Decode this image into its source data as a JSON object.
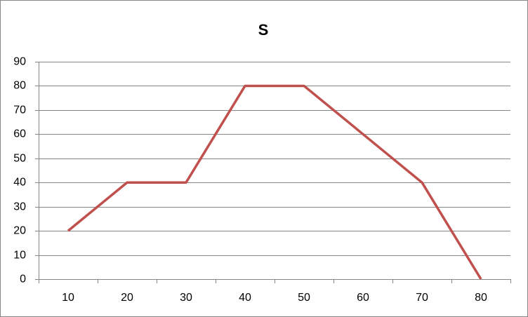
{
  "chart_data": {
    "type": "line",
    "title": "S",
    "categories": [
      "10",
      "20",
      "30",
      "40",
      "50",
      "60",
      "70",
      "80"
    ],
    "series": [
      {
        "name": "S",
        "color": "#c0504d",
        "values": [
          20,
          40,
          40,
          80,
          80,
          60,
          40,
          0
        ]
      }
    ],
    "ylim": [
      0,
      90
    ],
    "yticks": [
      0,
      10,
      20,
      30,
      40,
      50,
      60,
      70,
      80,
      90
    ],
    "grid": true
  }
}
